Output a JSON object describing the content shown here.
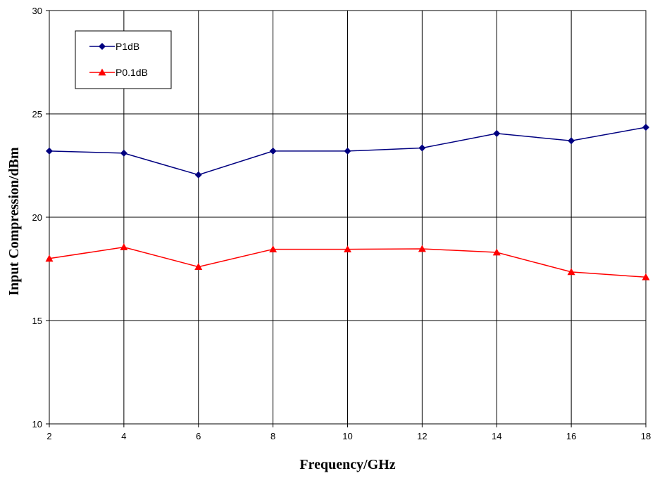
{
  "chart_data": {
    "type": "line",
    "xlabel": "Frequency/GHz",
    "ylabel": "Input Compression/dBm",
    "xlim": [
      2,
      18
    ],
    "ylim": [
      10,
      30
    ],
    "x_ticks": [
      2,
      4,
      6,
      8,
      10,
      12,
      14,
      16,
      18
    ],
    "y_ticks": [
      10,
      15,
      20,
      25,
      30
    ],
    "grid": true,
    "legend_position": "top-left",
    "x": [
      2,
      4,
      6,
      8,
      10,
      12,
      14,
      16,
      18
    ],
    "series": [
      {
        "name": "P1dB",
        "color": "#000080",
        "marker": "diamond",
        "values": [
          23.2,
          23.1,
          22.05,
          23.2,
          23.2,
          23.35,
          24.05,
          23.7,
          24.35
        ]
      },
      {
        "name": "P0.1dB",
        "color": "#ff0000",
        "marker": "triangle",
        "values": [
          18.0,
          18.55,
          17.6,
          18.45,
          18.45,
          18.47,
          18.3,
          17.35,
          17.1
        ]
      }
    ]
  }
}
